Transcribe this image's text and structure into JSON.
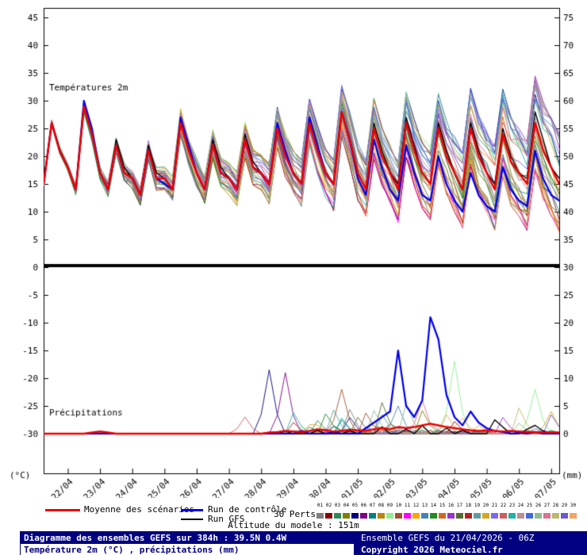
{
  "chart_data": {
    "type": "line",
    "title": "Diagramme des ensembles GEFS sur 384h : 39.5N 0.4W",
    "subtitle": "Température 2m (°C) , précipitations (mm)",
    "panel_labels": {
      "temperature": "Températures 2m",
      "precipitation": "Précipitations"
    },
    "axis": {
      "left_ticks": [
        45,
        40,
        35,
        30,
        25,
        20,
        15,
        10,
        5,
        0,
        -5,
        -10,
        -15,
        -20,
        -25,
        -30
      ],
      "right_ticks": [
        75,
        70,
        65,
        60,
        55,
        50,
        45,
        40,
        35,
        30,
        25,
        20,
        15,
        10,
        5,
        0
      ],
      "left_unit": "(°C)",
      "right_unit": "(mm)",
      "dates": [
        "22/04",
        "23/04",
        "24/04",
        "25/04",
        "26/04",
        "27/04",
        "28/04",
        "29/04",
        "30/04",
        "01/05",
        "02/05",
        "03/05",
        "04/05",
        "05/05",
        "06/05",
        "07/05"
      ],
      "total_hours": 384,
      "step_hours": 6,
      "first_date_offset_hours": 18,
      "date_spacing_hours": 24
    },
    "series": {
      "mean": {
        "label": "Moyenne des scénarios",
        "color": "#ee0000",
        "temp": [
          15,
          26,
          21,
          18,
          14,
          29,
          24,
          17,
          14,
          22,
          17,
          16,
          13,
          21,
          16,
          16,
          14,
          26,
          21,
          17,
          14,
          22,
          17,
          16,
          14,
          23,
          18,
          17,
          15,
          25,
          20,
          17,
          15,
          26,
          21,
          17,
          15,
          28,
          23,
          17,
          14,
          25,
          20,
          17,
          14,
          26,
          21,
          17,
          15,
          25,
          20,
          17,
          14,
          25,
          20,
          17,
          14,
          24,
          19,
          17,
          15,
          26,
          21,
          18,
          15
        ],
        "precip": [
          0,
          0,
          0,
          0,
          0,
          0,
          0.2,
          0.4,
          0.2,
          0,
          0,
          0,
          0,
          0,
          0,
          0,
          0,
          0,
          0,
          0,
          0,
          0,
          0,
          0,
          0,
          0,
          0,
          0,
          0.2,
          0.3,
          0.5,
          0.4,
          0.3,
          0.5,
          0.8,
          0.6,
          0.4,
          0.5,
          0.7,
          0.6,
          0.5,
          0.8,
          1,
          0.8,
          1.2,
          1,
          1.2,
          1.5,
          1.8,
          1.5,
          1.2,
          1,
          0.8,
          0.6,
          0.5,
          0.6,
          0.5,
          0.4,
          0.5,
          0.4,
          0.3,
          0.3,
          0.2,
          0.2,
          0.2
        ]
      },
      "control": {
        "label": "Run de contrôle",
        "color": "#0000ee",
        "temp": [
          15,
          26,
          21,
          18,
          14,
          30,
          25,
          17,
          14,
          22,
          17,
          16,
          13,
          21,
          16,
          15,
          14,
          27,
          22,
          17,
          14,
          22,
          17,
          16,
          14,
          23,
          18,
          17,
          15,
          26,
          21,
          17,
          15,
          27,
          22,
          17,
          15,
          28,
          23,
          16,
          13,
          23,
          18,
          14,
          12,
          22,
          17,
          13,
          12,
          20,
          15,
          12,
          10,
          17,
          13,
          11,
          10,
          18,
          14,
          12,
          11,
          21,
          16,
          13,
          12
        ],
        "precip": [
          0,
          0,
          0,
          0,
          0,
          0,
          0,
          0,
          0,
          0,
          0,
          0,
          0,
          0,
          0,
          0,
          0,
          0,
          0,
          0,
          0,
          0,
          0,
          0,
          0,
          0,
          0,
          0,
          0,
          0,
          0,
          0,
          0.5,
          0,
          0,
          0,
          0.3,
          0,
          0,
          0,
          1,
          2,
          3,
          4,
          15,
          5,
          3,
          6,
          21,
          17,
          7,
          3,
          1.5,
          4,
          2,
          1,
          0.5,
          0.3,
          0,
          0.2,
          0,
          0.3,
          0,
          0,
          0
        ]
      },
      "gfs": {
        "label": "Run GFS",
        "color": "#000000",
        "temp": [
          15,
          26,
          21,
          18,
          14,
          29,
          24,
          17,
          14,
          23,
          18,
          16,
          13,
          22,
          17,
          16,
          14,
          26,
          21,
          17,
          14,
          23,
          18,
          16,
          14,
          24,
          19,
          17,
          15,
          25,
          20,
          17,
          15,
          27,
          22,
          17,
          15,
          28,
          23,
          17,
          14,
          26,
          21,
          17,
          15,
          27,
          22,
          17,
          15,
          26,
          21,
          17,
          14,
          26,
          21,
          17,
          15,
          25,
          20,
          17,
          16,
          28,
          23,
          18,
          16
        ],
        "precip": [
          0,
          0,
          0,
          0,
          0,
          0,
          0,
          0,
          0,
          0,
          0,
          0,
          0,
          0,
          0,
          0,
          0,
          0,
          0,
          0,
          0,
          0,
          0,
          0,
          0,
          0,
          0,
          0,
          0,
          0,
          0.4,
          0,
          0,
          0,
          0.6,
          0,
          0,
          0,
          0.5,
          0,
          0,
          0,
          1.2,
          0,
          0,
          0.8,
          0,
          1.5,
          0,
          0,
          1,
          0,
          0.6,
          0,
          0,
          0,
          2.5,
          1.2,
          0,
          0,
          0.8,
          1.5,
          0.5,
          0,
          0
        ]
      }
    },
    "perturbations": {
      "label": "30 Perts.",
      "count": 30,
      "labels": [
        "01",
        "02",
        "03",
        "04",
        "05",
        "06",
        "07",
        "08",
        "09",
        "10",
        "11",
        "12",
        "13",
        "14",
        "15",
        "16",
        "17",
        "18",
        "19",
        "20",
        "21",
        "22",
        "23",
        "24",
        "25",
        "26",
        "27",
        "28",
        "29",
        "30"
      ],
      "colors": [
        "#808080",
        "#8B0000",
        "#2E8B57",
        "#808000",
        "#000080",
        "#800080",
        "#008080",
        "#B8860B",
        "#90EE90",
        "#A0522D",
        "#FF00FF",
        "#FFA500",
        "#4682B4",
        "#228B22",
        "#D2691E",
        "#9932CC",
        "#556B2F",
        "#B22222",
        "#5F9EA0",
        "#DAA520",
        "#7B68EE",
        "#CD5C5C",
        "#20B2AA",
        "#BC8F8F",
        "#4169E1",
        "#8FBC8F",
        "#DB7093",
        "#BDB76B",
        "#6A5ACD",
        "#F4A460"
      ],
      "spread": {
        "base": 0.4,
        "growth": 4.5,
        "exponent": 1.3
      },
      "precip_events": [
        {
          "member": 4,
          "k": 28,
          "mm": 11.5
        },
        {
          "member": 5,
          "k": 30,
          "mm": 11
        },
        {
          "member": 9,
          "k": 37,
          "mm": 8
        },
        {
          "member": 12,
          "k": 44,
          "mm": 5
        },
        {
          "member": 8,
          "k": 51,
          "mm": 13
        },
        {
          "member": 8,
          "k": 61,
          "mm": 8
        },
        {
          "member": 26,
          "k": 47,
          "mm": 6
        },
        {
          "member": 19,
          "k": 63,
          "mm": 4
        },
        {
          "member": 21,
          "k": 25,
          "mm": 3
        }
      ]
    }
  },
  "altitude_label": "Altitude du modele : 151m",
  "footer": {
    "left_line1": "Diagramme des ensembles GEFS sur 384h : 39.5N 0.4W",
    "left_line2": "Température 2m (°C) , précipitations (mm)",
    "right_line1": "Ensemble GEFS du 21/04/2026 - 06Z",
    "right_line2": "Copyright 2026 Meteociel.fr"
  }
}
